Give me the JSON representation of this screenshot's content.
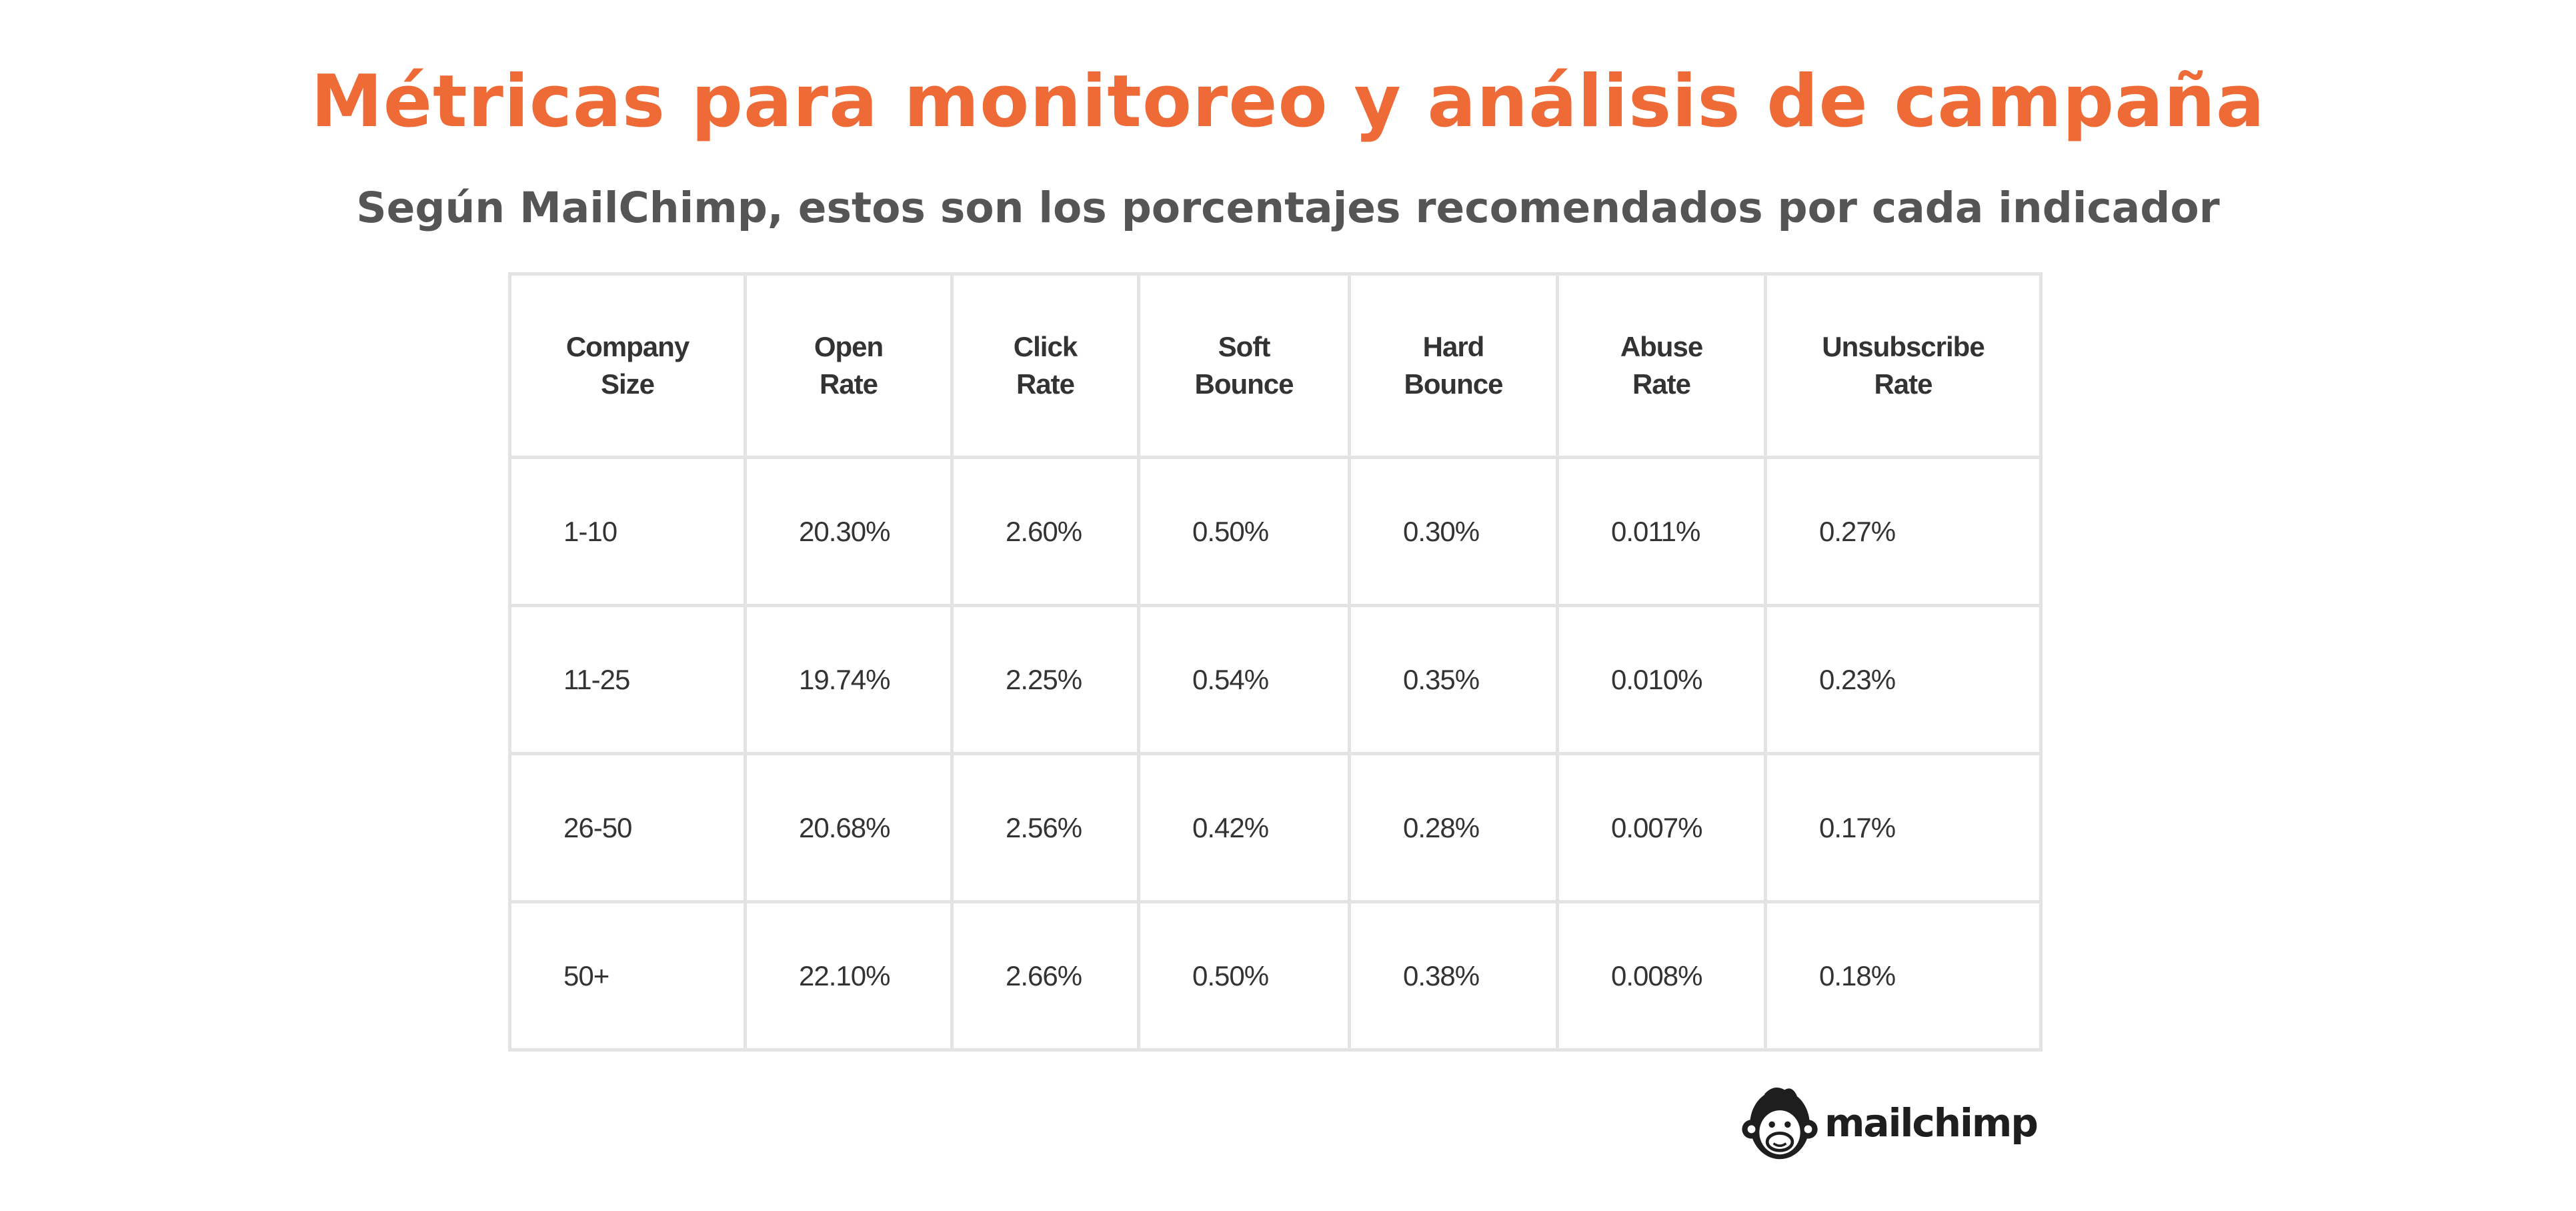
{
  "header": {
    "title": "Métricas para monitoreo y análisis de campaña",
    "subtitle": "Según MailChimp, estos son los porcentajes recomendados por cada indicador"
  },
  "table": {
    "headers": [
      [
        "Company",
        "Size"
      ],
      [
        "Open",
        "Rate"
      ],
      [
        "Click",
        "Rate"
      ],
      [
        "Soft",
        "Bounce"
      ],
      [
        "Hard",
        "Bounce"
      ],
      [
        "Abuse",
        "Rate"
      ],
      [
        "Unsubscribe",
        "Rate"
      ]
    ],
    "rows": [
      [
        "1-10",
        "20.30%",
        "2.60%",
        "0.50%",
        "0.30%",
        "0.011%",
        "0.27%"
      ],
      [
        "11-25",
        "19.74%",
        "2.25%",
        "0.54%",
        "0.35%",
        "0.010%",
        "0.23%"
      ],
      [
        "26-50",
        "20.68%",
        "2.56%",
        "0.42%",
        "0.28%",
        "0.007%",
        "0.17%"
      ],
      [
        "50+",
        "22.10%",
        "2.66%",
        "0.50%",
        "0.38%",
        "0.008%",
        "0.18%"
      ]
    ]
  },
  "logo": {
    "icon": "chimp-head-icon",
    "text": "mailchimp"
  },
  "colors": {
    "title": "#ee6a37",
    "subtitle": "#555555",
    "grid": "#e3e3e3",
    "cell_text": "#333333"
  }
}
